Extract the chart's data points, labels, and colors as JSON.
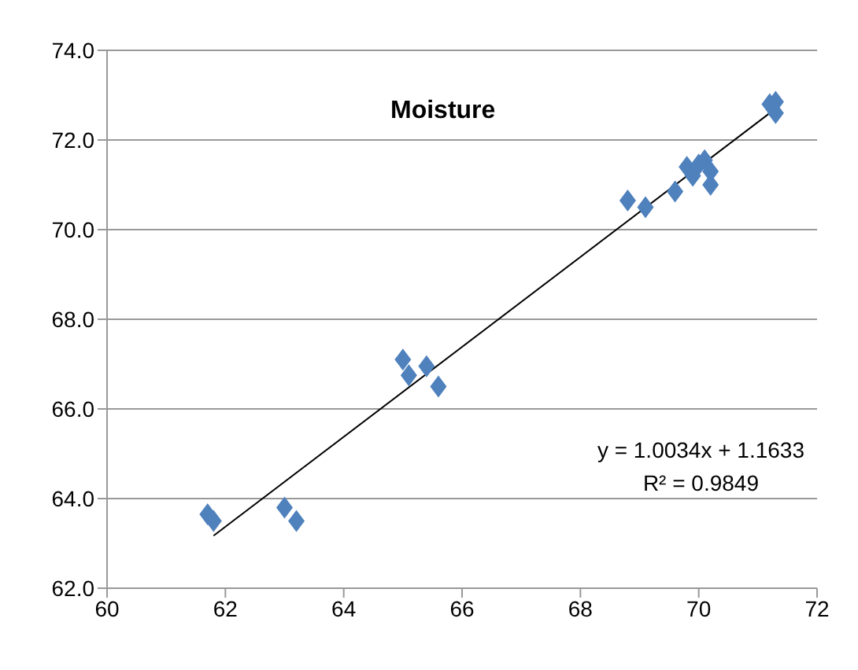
{
  "chart_data": {
    "type": "scatter",
    "title": "Moisture",
    "marker": "diamond",
    "grid": "y",
    "xlim": [
      60,
      72
    ],
    "xticks": [
      60,
      62,
      64,
      66,
      68,
      70,
      72
    ],
    "ylim": [
      62,
      74
    ],
    "yticks": [
      {
        "value": 62,
        "label": "62.0"
      },
      {
        "value": 64,
        "label": "64.0"
      },
      {
        "value": 66,
        "label": "66.0"
      },
      {
        "value": 68,
        "label": "68.0"
      },
      {
        "value": 70,
        "label": "70.0"
      },
      {
        "value": 72,
        "label": "72.0"
      },
      {
        "value": 74,
        "label": "74.0"
      }
    ],
    "annotations": [
      "y = 1.0034x + 1.1633",
      "R² = 0.9849"
    ],
    "series": [
      {
        "color": "#4f81bd",
        "x": [
          61.7,
          61.8,
          63.0,
          63.2,
          65.0,
          65.1,
          65.4,
          65.6,
          68.8,
          69.1,
          69.6,
          69.8,
          69.9,
          70.0,
          70.1,
          70.2,
          70.2,
          71.2,
          71.3,
          71.3
        ],
        "values": [
          63.65,
          63.5,
          63.8,
          63.5,
          67.1,
          66.75,
          66.95,
          66.5,
          70.65,
          70.5,
          70.85,
          71.4,
          71.2,
          71.45,
          71.55,
          71.3,
          71.0,
          72.8,
          72.85,
          72.6
        ]
      },
      {
        "type": "line",
        "color": "#000000",
        "marker": "none",
        "x": [
          61.8,
          71.3
        ],
        "values": [
          63.17,
          72.7
        ]
      }
    ]
  }
}
